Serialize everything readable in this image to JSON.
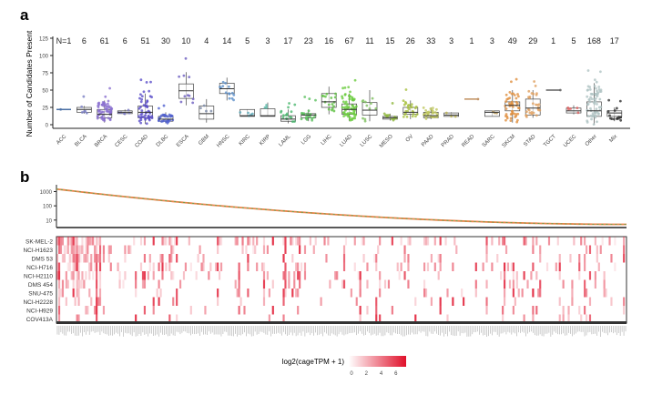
{
  "chart_data": [
    {
      "panel": "a",
      "type": "box",
      "ylabel": "Number of Candidates Present",
      "ylim": [
        0,
        125
      ],
      "yticks": [
        0,
        25,
        50,
        75,
        100,
        125
      ],
      "n_prefix": "N=",
      "categories": [
        {
          "name": "ACC",
          "n": 1,
          "median": 22,
          "q1": 22,
          "q3": 22,
          "lo": 22,
          "hi": 22,
          "color": "#4a6fa5"
        },
        {
          "name": "BLCA",
          "n": 6,
          "median": 22,
          "q1": 18,
          "q3": 25,
          "lo": 16,
          "hi": 27,
          "color": "#7b7fc4"
        },
        {
          "name": "BRCA",
          "n": 61,
          "median": 15,
          "q1": 10,
          "q3": 22,
          "lo": 3,
          "hi": 35,
          "color": "#8a6fd0"
        },
        {
          "name": "CESC",
          "n": 6,
          "median": 18,
          "q1": 16,
          "q3": 20,
          "lo": 15,
          "hi": 22,
          "color": "#7a7ac0"
        },
        {
          "name": "COAD",
          "n": 51,
          "median": 18,
          "q1": 10,
          "q3": 27,
          "lo": 1,
          "hi": 45,
          "color": "#5b4fc9"
        },
        {
          "name": "DLBC",
          "n": 30,
          "median": 8,
          "q1": 5,
          "q3": 12,
          "lo": 2,
          "hi": 18,
          "color": "#5060d0"
        },
        {
          "name": "ESCA",
          "n": 10,
          "median": 49,
          "q1": 38,
          "q3": 59,
          "lo": 28,
          "hi": 76,
          "color": "#6d5ec0"
        },
        {
          "name": "GBM",
          "n": 4,
          "median": 16,
          "q1": 8,
          "q3": 27,
          "lo": 3,
          "hi": 37,
          "color": "#7b8aa8"
        },
        {
          "name": "HNSC",
          "n": 14,
          "median": 52,
          "q1": 45,
          "q3": 60,
          "lo": 35,
          "hi": 68,
          "color": "#5b8fc8"
        },
        {
          "name": "KIRC",
          "n": 5,
          "median": 13,
          "q1": 12,
          "q3": 22,
          "lo": 12,
          "hi": 22,
          "color": "#5aa8b8"
        },
        {
          "name": "KIRP",
          "n": 3,
          "median": 13,
          "q1": 12,
          "q3": 23,
          "lo": 12,
          "hi": 32,
          "color": "#5ab8a8"
        },
        {
          "name": "LAML",
          "n": 17,
          "median": 8,
          "q1": 5,
          "q3": 13,
          "lo": 2,
          "hi": 22,
          "color": "#4cb870"
        },
        {
          "name": "LGG",
          "n": 23,
          "median": 14,
          "q1": 10,
          "q3": 16,
          "lo": 5,
          "hi": 22,
          "color": "#5cc060"
        },
        {
          "name": "LIHC",
          "n": 16,
          "median": 33,
          "q1": 25,
          "q3": 45,
          "lo": 15,
          "hi": 55,
          "color": "#5cc040"
        },
        {
          "name": "LUAD",
          "n": 67,
          "median": 22,
          "q1": 15,
          "q3": 30,
          "lo": 5,
          "hi": 45,
          "color": "#6ccc40"
        },
        {
          "name": "LUSC",
          "n": 11,
          "median": 21,
          "q1": 14,
          "q3": 32,
          "lo": 5,
          "hi": 50,
          "color": "#80c060"
        },
        {
          "name": "MESO",
          "n": 15,
          "median": 10,
          "q1": 8,
          "q3": 12,
          "lo": 6,
          "hi": 16,
          "color": "#90b840"
        },
        {
          "name": "OV",
          "n": 26,
          "median": 18,
          "q1": 15,
          "q3": 25,
          "lo": 8,
          "hi": 35,
          "color": "#a8c040"
        },
        {
          "name": "PAAD",
          "n": 33,
          "median": 13,
          "q1": 10,
          "q3": 18,
          "lo": 8,
          "hi": 25,
          "color": "#c0c860"
        },
        {
          "name": "PRAD",
          "n": 3,
          "median": 14,
          "q1": 12,
          "q3": 17,
          "lo": 11,
          "hi": 18,
          "color": "#b8b050"
        },
        {
          "name": "READ",
          "n": 1,
          "median": 37,
          "q1": 37,
          "q3": 37,
          "lo": 37,
          "hi": 37,
          "color": "#c09060"
        },
        {
          "name": "SARC",
          "n": 3,
          "median": 18,
          "q1": 12,
          "q3": 20,
          "lo": 12,
          "hi": 20,
          "color": "#b09050"
        },
        {
          "name": "SKCM",
          "n": 49,
          "median": 28,
          "q1": 20,
          "q3": 33,
          "lo": 3,
          "hi": 50,
          "color": "#e09040"
        },
        {
          "name": "STAD",
          "n": 29,
          "median": 24,
          "q1": 14,
          "q3": 37,
          "lo": 10,
          "hi": 50,
          "color": "#e0a060"
        },
        {
          "name": "TGCT",
          "n": 1,
          "median": 50,
          "q1": 50,
          "q3": 50,
          "lo": 50,
          "hi": 50,
          "color": "#606060"
        },
        {
          "name": "UCEC",
          "n": 5,
          "median": 20,
          "q1": 17,
          "q3": 24,
          "lo": 15,
          "hi": 28,
          "color": "#e06060"
        },
        {
          "name": "Other",
          "n": 168,
          "median": 20,
          "q1": 12,
          "q3": 33,
          "lo": 0,
          "hi": 60,
          "color": "#b0c4c4"
        },
        {
          "name": "Mix",
          "n": 17,
          "median": 17,
          "q1": 12,
          "q3": 20,
          "lo": 5,
          "hi": 25,
          "color": "#303030"
        }
      ]
    },
    {
      "panel": "b",
      "type": "line",
      "yscale": "log",
      "yticks": [
        "10",
        "100",
        "1000"
      ],
      "ylim": [
        3,
        3000
      ],
      "start_value": 1500,
      "end_value": 5,
      "line_colors": [
        "#e8834a",
        "#4caf50"
      ]
    },
    {
      "panel": "b",
      "type": "heatmap",
      "rows": [
        "SK-MEL-2",
        "NCI-H1623",
        "DMS 53",
        "NCI-H716",
        "NCI-H2110",
        "DMS 454",
        "SNU-475",
        "NCI-H2228",
        "NCI-H929",
        "COV413A"
      ],
      "legend_title": "log2(cageTPM + 1)",
      "legend_ticks": [
        "0",
        "2",
        "4",
        "6"
      ],
      "color_low": "#ffffff",
      "color_high": "#e0102a",
      "value_range": [
        0,
        7
      ]
    }
  ],
  "panel_labels": {
    "a": "a",
    "b": "b"
  }
}
